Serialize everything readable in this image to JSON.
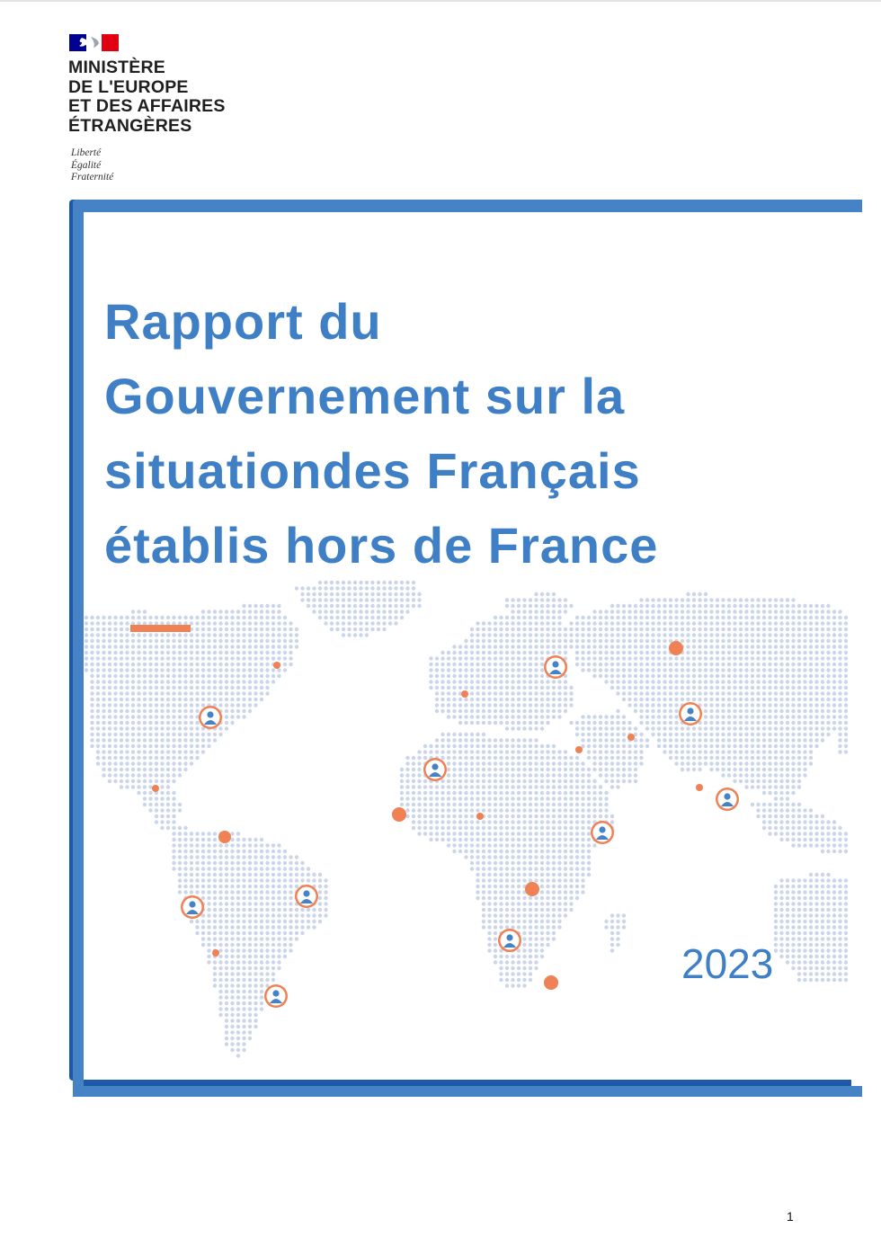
{
  "header": {
    "ministry_lines": [
      "MINISTÈRE",
      "DE L'EUROPE",
      "ET DES AFFAIRES",
      "ÉTRANGÈRES"
    ],
    "motto_lines": [
      "Liberté",
      "Égalité",
      "Fraternité"
    ]
  },
  "cover": {
    "title_lines": [
      "Rapport du",
      "Gouvernement sur la",
      "situationdes Français",
      "établis hors de France"
    ],
    "year": "2023"
  },
  "footer": {
    "page_number": "1"
  },
  "colors": {
    "title_blue": "#3f7fc6",
    "frame_blue": "#4683c6",
    "frame_dark": "#1c5aa8",
    "map_dots": "#cad5ea",
    "marker_orange": "#ef8154",
    "flag_blue": "#000091",
    "flag_red": "#e1000f"
  },
  "map": {
    "person_markers": 11,
    "orange_dots": 14
  }
}
